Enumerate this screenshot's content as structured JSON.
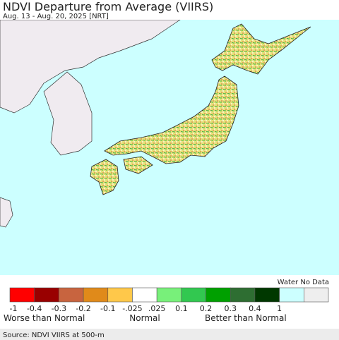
{
  "header": {
    "title": "NDVI Departure from Average (VIIRS)",
    "subtitle": "Aug. 13 - Aug. 20, 2025 [NRT]"
  },
  "legend": {
    "colors": [
      "#ff0000",
      "#990000",
      "#c8643f",
      "#e08a1a",
      "#ffc84a",
      "#ffffff",
      "#78f07a",
      "#32c850",
      "#00a000",
      "#2e6e32",
      "#003800",
      "#ccffff",
      "#eeeeee"
    ],
    "tick_labels": [
      "-1",
      "-0.4",
      "-0.3",
      "-0.2",
      "-0.1",
      "-.025",
      ".025",
      "0.1",
      "0.2",
      "0.3",
      "0.4",
      "1"
    ],
    "no_data_label": "Water No Data",
    "captions": [
      "Worse than Normal",
      "Normal",
      "Better than Normal"
    ]
  },
  "source": "Source: NDVI VIIRS at 500-m"
}
